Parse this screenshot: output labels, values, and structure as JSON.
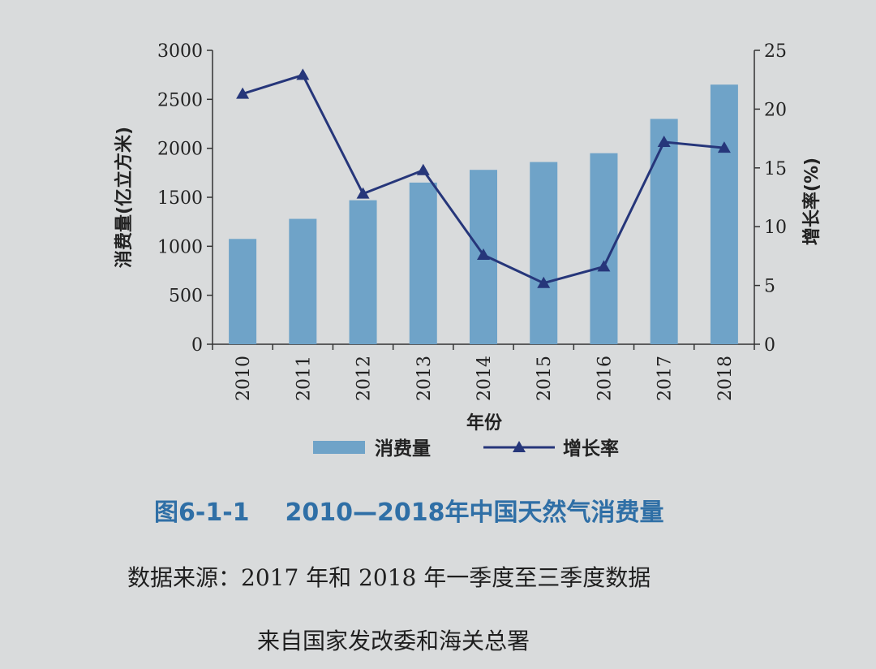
{
  "chart_data": {
    "type": "bar+line",
    "categories": [
      "2010",
      "2011",
      "2012",
      "2013",
      "2014",
      "2015",
      "2016",
      "2017",
      "2018"
    ],
    "series": [
      {
        "name": "消费量",
        "type": "bar",
        "axis": "left",
        "color": "#6fa3c8",
        "values": [
          1075,
          1280,
          1470,
          1650,
          1780,
          1860,
          1950,
          2300,
          2650
        ]
      },
      {
        "name": "增长率",
        "type": "line",
        "axis": "right",
        "color": "#26367a",
        "marker": "triangle",
        "values": [
          21.3,
          22.9,
          12.8,
          14.8,
          7.6,
          5.2,
          6.6,
          17.2,
          16.7
        ]
      }
    ],
    "xlabel": "年份",
    "ylabel_left": "消费量(亿立方米)",
    "ylabel_right": "增长率(%)",
    "ylim_left": [
      0,
      3000
    ],
    "ylim_right": [
      0,
      25
    ],
    "yticks_left": [
      "0",
      "500",
      "1000",
      "1500",
      "2000",
      "2500",
      "3000"
    ],
    "yticks_right": [
      "0",
      "5",
      "10",
      "15",
      "20",
      "25"
    ],
    "grid": false,
    "legend_position": "bottom"
  },
  "figure": {
    "number": "图6-1-1",
    "title": "2010—2018年中国天然气消费量",
    "caption_color": "#2f6fa6"
  },
  "source": {
    "line1": "数据来源：2017 年和 2018 年一季度至三季度数据",
    "line2": "来自国家发改委和海关总署"
  }
}
